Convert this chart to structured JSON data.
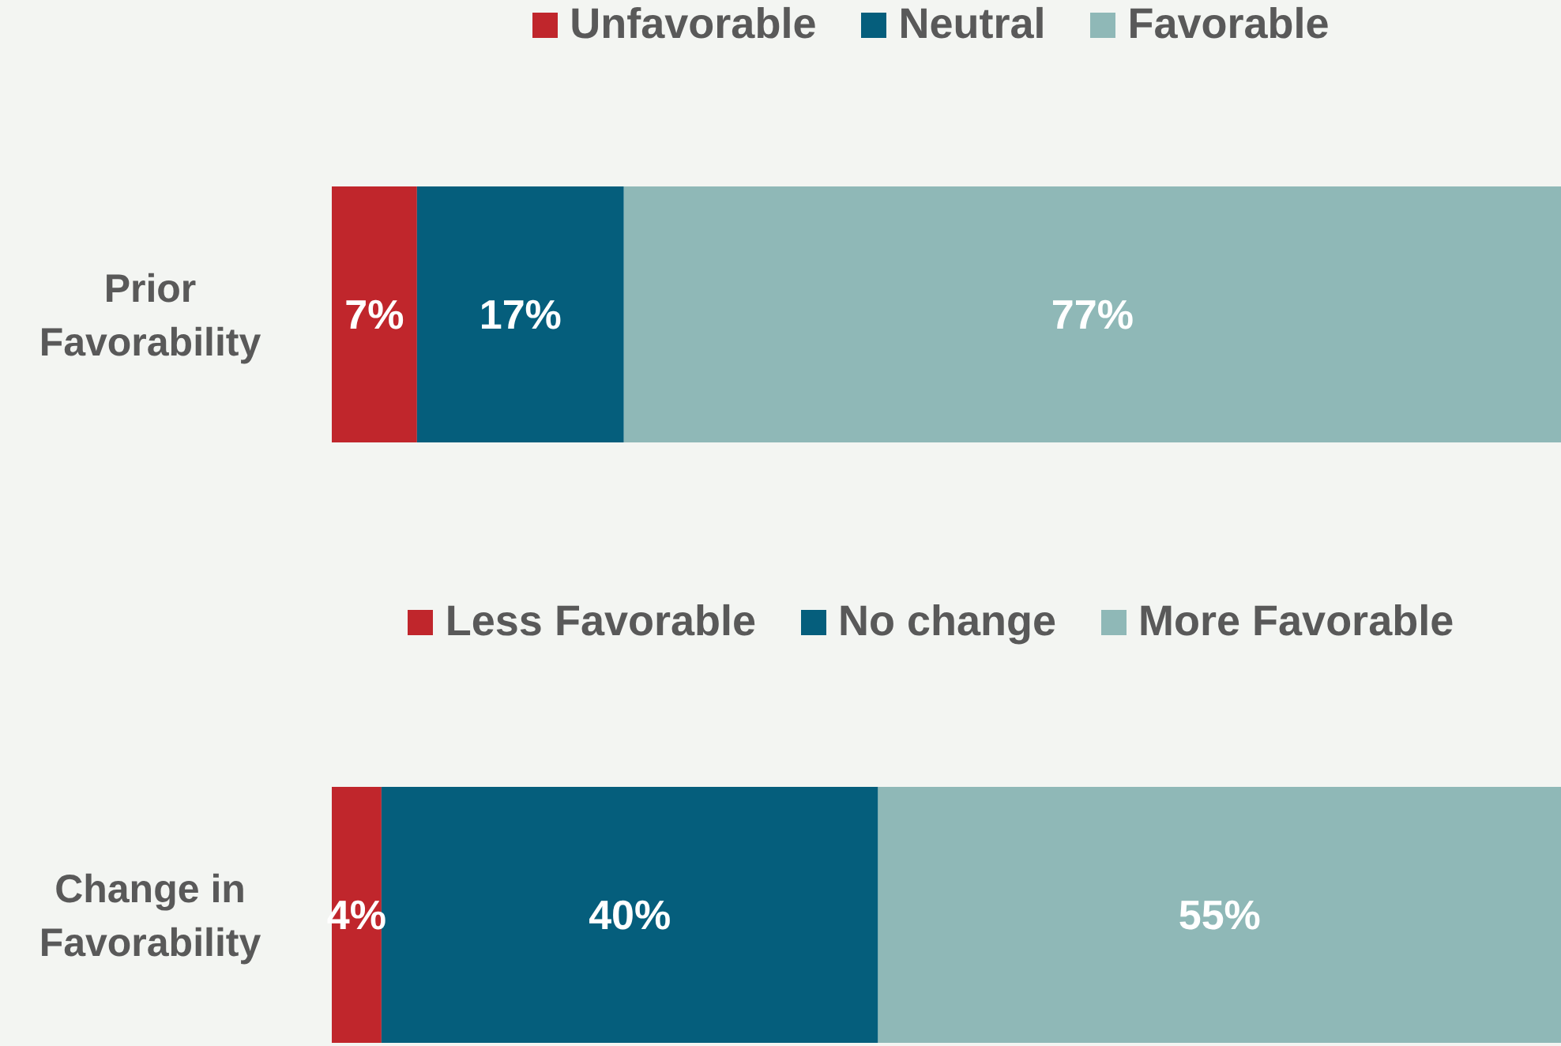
{
  "chart_data": [
    {
      "type": "bar",
      "orientation": "horizontal",
      "stacked": true,
      "categories": [
        "Prior Favorability"
      ],
      "xlim": [
        0,
        101
      ],
      "tick_labels": "y",
      "legend": "top",
      "grid": false,
      "series": [
        {
          "name": "Unfavorable",
          "color": "#c0262c",
          "values": [
            7
          ],
          "value_labels": [
            "7%"
          ]
        },
        {
          "name": "Neutral",
          "color": "#055e7c",
          "values": [
            17
          ],
          "value_labels": [
            "17%"
          ]
        },
        {
          "name": "Favorable",
          "color": "#8fb8b7",
          "values": [
            77
          ],
          "value_labels": [
            "77%"
          ]
        }
      ]
    },
    {
      "type": "bar",
      "orientation": "horizontal",
      "stacked": true,
      "categories": [
        "Change in Favorability"
      ],
      "xlim": [
        0,
        99
      ],
      "tick_labels": "y",
      "legend": "top",
      "grid": false,
      "series": [
        {
          "name": "Less Favorable",
          "color": "#c0262c",
          "values": [
            4
          ],
          "value_labels": [
            "4%"
          ]
        },
        {
          "name": "No change",
          "color": "#055e7c",
          "values": [
            40
          ],
          "value_labels": [
            "40%"
          ]
        },
        {
          "name": "More Favorable",
          "color": "#8fb8b7",
          "values": [
            55
          ],
          "value_labels": [
            "55%"
          ]
        }
      ]
    }
  ]
}
